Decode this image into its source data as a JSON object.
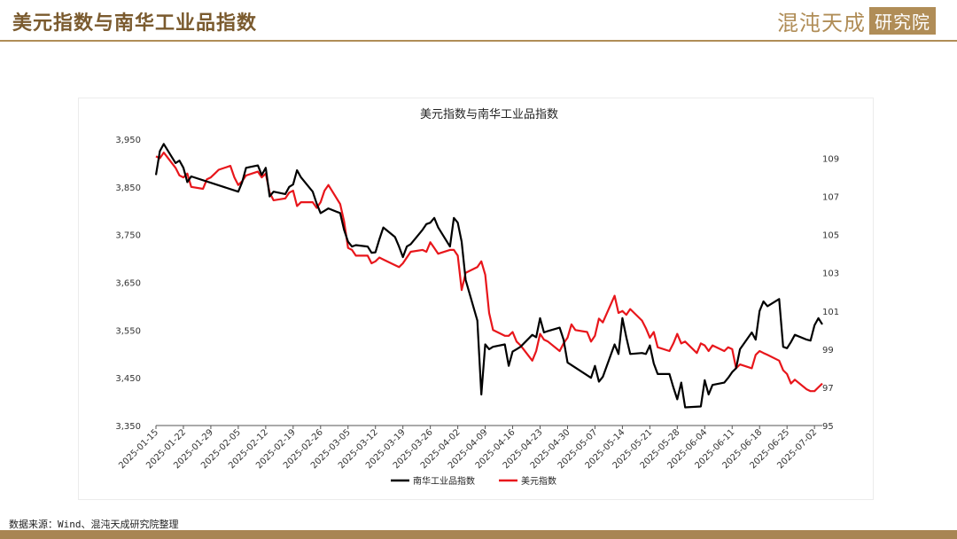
{
  "header": {
    "title": "美元指数与南华工业品指数",
    "brand_name": "混沌天成",
    "brand_box": "研究院"
  },
  "footer": {
    "source": "数据来源：Wind、混沌天成研究院整理"
  },
  "colors": {
    "accent": "#b08d57",
    "bar": "#a88553",
    "series_nanhua": "#000000",
    "series_usd": "#e8161b"
  },
  "chart_data": {
    "type": "line",
    "title": "美元指数与南华工业品指数",
    "xlabel": "",
    "ylabel": "",
    "x_tick_labels": [
      "2025-01-15",
      "2025-01-22",
      "2025-01-29",
      "2025-02-05",
      "2025-02-12",
      "2025-02-19",
      "2025-02-26",
      "2025-03-05",
      "2025-03-12",
      "2025-03-19",
      "2025-03-26",
      "2025-04-02",
      "2025-04-09",
      "2025-04-16",
      "2025-04-23",
      "2025-04-30",
      "2025-05-07",
      "2025-05-14",
      "2025-05-21",
      "2025-05-28",
      "2025-06-04",
      "2025-06-11",
      "2025-06-18",
      "2025-06-25",
      "2025-07-02"
    ],
    "x_range": [
      "2025-01-15",
      "2025-07-04"
    ],
    "y_left": {
      "ticks": [
        3350,
        3450,
        3550,
        3650,
        3750,
        3850,
        3950
      ],
      "tick_labels": [
        "3,350",
        "3,450",
        "3,550",
        "3,650",
        "3,750",
        "3,850",
        "3,950"
      ],
      "range": [
        3350,
        3950
      ]
    },
    "y_right": {
      "ticks": [
        95,
        97,
        99,
        101,
        103,
        105,
        107,
        109
      ],
      "tick_labels": [
        "95",
        "97",
        "99",
        "101",
        "103",
        "105",
        "107",
        "109"
      ],
      "range": [
        95,
        110
      ]
    },
    "legend": {
      "position": "bottom"
    },
    "grid": false,
    "series": [
      {
        "name": "南华工业品指数",
        "axis": "left",
        "color": "#000000",
        "points": [
          [
            "2025-01-15",
            3875
          ],
          [
            "2025-01-16",
            3925
          ],
          [
            "2025-01-17",
            3940
          ],
          [
            "2025-01-20",
            3900
          ],
          [
            "2025-01-21",
            3905
          ],
          [
            "2025-01-22",
            3890
          ],
          [
            "2025-01-23",
            3860
          ],
          [
            "2025-01-24",
            3872
          ],
          [
            "2025-02-05",
            3840
          ],
          [
            "2025-02-06",
            3860
          ],
          [
            "2025-02-07",
            3890
          ],
          [
            "2025-02-10",
            3895
          ],
          [
            "2025-02-11",
            3875
          ],
          [
            "2025-02-12",
            3890
          ],
          [
            "2025-02-13",
            3830
          ],
          [
            "2025-02-14",
            3840
          ],
          [
            "2025-02-17",
            3835
          ],
          [
            "2025-02-18",
            3850
          ],
          [
            "2025-02-19",
            3855
          ],
          [
            "2025-02-20",
            3885
          ],
          [
            "2025-02-21",
            3870
          ],
          [
            "2025-02-24",
            3840
          ],
          [
            "2025-02-25",
            3815
          ],
          [
            "2025-02-26",
            3795
          ],
          [
            "2025-02-27",
            3800
          ],
          [
            "2025-02-28",
            3805
          ],
          [
            "2025-03-03",
            3795
          ],
          [
            "2025-03-04",
            3760
          ],
          [
            "2025-03-05",
            3735
          ],
          [
            "2025-03-06",
            3725
          ],
          [
            "2025-03-07",
            3728
          ],
          [
            "2025-03-10",
            3725
          ],
          [
            "2025-03-11",
            3712
          ],
          [
            "2025-03-12",
            3713
          ],
          [
            "2025-03-13",
            3740
          ],
          [
            "2025-03-14",
            3765
          ],
          [
            "2025-03-17",
            3745
          ],
          [
            "2025-03-18",
            3725
          ],
          [
            "2025-03-19",
            3703
          ],
          [
            "2025-03-20",
            3725
          ],
          [
            "2025-03-21",
            3730
          ],
          [
            "2025-03-24",
            3760
          ],
          [
            "2025-03-25",
            3772
          ],
          [
            "2025-03-26",
            3775
          ],
          [
            "2025-03-27",
            3785
          ],
          [
            "2025-03-28",
            3765
          ],
          [
            "2025-03-31",
            3725
          ],
          [
            "2025-04-01",
            3785
          ],
          [
            "2025-04-02",
            3775
          ],
          [
            "2025-04-03",
            3735
          ],
          [
            "2025-04-04",
            3655
          ],
          [
            "2025-04-07",
            3570
          ],
          [
            "2025-04-08",
            3415
          ],
          [
            "2025-04-09",
            3520
          ],
          [
            "2025-04-10",
            3510
          ],
          [
            "2025-04-11",
            3515
          ],
          [
            "2025-04-14",
            3520
          ],
          [
            "2025-04-15",
            3475
          ],
          [
            "2025-04-16",
            3505
          ],
          [
            "2025-04-17",
            3510
          ],
          [
            "2025-04-18",
            3515
          ],
          [
            "2025-04-21",
            3540
          ],
          [
            "2025-04-22",
            3535
          ],
          [
            "2025-04-23",
            3575
          ],
          [
            "2025-04-24",
            3545
          ],
          [
            "2025-04-25",
            3548
          ],
          [
            "2025-04-28",
            3555
          ],
          [
            "2025-04-29",
            3530
          ],
          [
            "2025-04-30",
            3482
          ],
          [
            "2025-05-06",
            3450
          ],
          [
            "2025-05-07",
            3475
          ],
          [
            "2025-05-08",
            3442
          ],
          [
            "2025-05-09",
            3452
          ],
          [
            "2025-05-12",
            3520
          ],
          [
            "2025-05-13",
            3500
          ],
          [
            "2025-05-14",
            3575
          ],
          [
            "2025-05-15",
            3535
          ],
          [
            "2025-05-16",
            3500
          ],
          [
            "2025-05-19",
            3502
          ],
          [
            "2025-05-20",
            3500
          ],
          [
            "2025-05-21",
            3518
          ],
          [
            "2025-05-22",
            3480
          ],
          [
            "2025-05-23",
            3458
          ],
          [
            "2025-05-26",
            3458
          ],
          [
            "2025-05-27",
            3430
          ],
          [
            "2025-05-28",
            3405
          ],
          [
            "2025-05-29",
            3440
          ],
          [
            "2025-05-30",
            3388
          ],
          [
            "2025-06-03",
            3390
          ],
          [
            "2025-06-04",
            3445
          ],
          [
            "2025-06-05",
            3415
          ],
          [
            "2025-06-06",
            3435
          ],
          [
            "2025-06-09",
            3440
          ],
          [
            "2025-06-10",
            3450
          ],
          [
            "2025-06-11",
            3462
          ],
          [
            "2025-06-12",
            3470
          ],
          [
            "2025-06-13",
            3510
          ],
          [
            "2025-06-16",
            3545
          ],
          [
            "2025-06-17",
            3530
          ],
          [
            "2025-06-18",
            3590
          ],
          [
            "2025-06-19",
            3610
          ],
          [
            "2025-06-20",
            3600
          ],
          [
            "2025-06-23",
            3615
          ],
          [
            "2025-06-24",
            3515
          ],
          [
            "2025-06-25",
            3512
          ],
          [
            "2025-06-26",
            3525
          ],
          [
            "2025-06-27",
            3540
          ],
          [
            "2025-06-30",
            3530
          ],
          [
            "2025-07-01",
            3528
          ],
          [
            "2025-07-02",
            3560
          ],
          [
            "2025-07-03",
            3575
          ],
          [
            "2025-07-04",
            3562
          ]
        ]
      },
      {
        "name": "美元指数",
        "axis": "right",
        "color": "#e8161b",
        "points": [
          [
            "2025-01-15",
            109.1
          ],
          [
            "2025-01-16",
            109.0
          ],
          [
            "2025-01-17",
            109.3
          ],
          [
            "2025-01-20",
            108.5
          ],
          [
            "2025-01-21",
            108.1
          ],
          [
            "2025-01-22",
            108.0
          ],
          [
            "2025-01-23",
            108.2
          ],
          [
            "2025-01-24",
            107.5
          ],
          [
            "2025-01-27",
            107.4
          ],
          [
            "2025-01-28",
            107.9
          ],
          [
            "2025-01-29",
            108.0
          ],
          [
            "2025-01-30",
            108.2
          ],
          [
            "2025-01-31",
            108.4
          ],
          [
            "2025-02-03",
            108.6
          ],
          [
            "2025-02-04",
            108.0
          ],
          [
            "2025-02-05",
            107.6
          ],
          [
            "2025-02-06",
            107.8
          ],
          [
            "2025-02-07",
            108.1
          ],
          [
            "2025-02-10",
            108.3
          ],
          [
            "2025-02-11",
            108.0
          ],
          [
            "2025-02-12",
            108.2
          ],
          [
            "2025-02-13",
            107.2
          ],
          [
            "2025-02-14",
            106.8
          ],
          [
            "2025-02-17",
            106.9
          ],
          [
            "2025-02-18",
            107.2
          ],
          [
            "2025-02-19",
            107.3
          ],
          [
            "2025-02-20",
            106.5
          ],
          [
            "2025-02-21",
            106.7
          ],
          [
            "2025-02-24",
            106.7
          ],
          [
            "2025-02-25",
            106.4
          ],
          [
            "2025-02-26",
            106.7
          ],
          [
            "2025-02-27",
            107.3
          ],
          [
            "2025-02-28",
            107.6
          ],
          [
            "2025-03-03",
            106.6
          ],
          [
            "2025-03-04",
            105.7
          ],
          [
            "2025-03-05",
            104.3
          ],
          [
            "2025-03-06",
            104.2
          ],
          [
            "2025-03-07",
            103.9
          ],
          [
            "2025-03-10",
            103.9
          ],
          [
            "2025-03-11",
            103.5
          ],
          [
            "2025-03-12",
            103.6
          ],
          [
            "2025-03-13",
            103.8
          ],
          [
            "2025-03-14",
            103.7
          ],
          [
            "2025-03-17",
            103.4
          ],
          [
            "2025-03-18",
            103.3
          ],
          [
            "2025-03-19",
            103.5
          ],
          [
            "2025-03-20",
            103.8
          ],
          [
            "2025-03-21",
            104.1
          ],
          [
            "2025-03-24",
            104.2
          ],
          [
            "2025-03-25",
            104.1
          ],
          [
            "2025-03-26",
            104.6
          ],
          [
            "2025-03-27",
            104.3
          ],
          [
            "2025-03-28",
            104.0
          ],
          [
            "2025-03-31",
            104.2
          ],
          [
            "2025-04-01",
            104.2
          ],
          [
            "2025-04-02",
            103.9
          ],
          [
            "2025-04-03",
            102.1
          ],
          [
            "2025-04-04",
            103.0
          ],
          [
            "2025-04-07",
            103.3
          ],
          [
            "2025-04-08",
            103.6
          ],
          [
            "2025-04-09",
            102.9
          ],
          [
            "2025-04-10",
            100.9
          ],
          [
            "2025-04-11",
            100.0
          ],
          [
            "2025-04-14",
            99.7
          ],
          [
            "2025-04-15",
            99.7
          ],
          [
            "2025-04-16",
            99.9
          ],
          [
            "2025-04-17",
            99.4
          ],
          [
            "2025-04-18",
            99.2
          ],
          [
            "2025-04-21",
            98.4
          ],
          [
            "2025-04-22",
            98.9
          ],
          [
            "2025-04-23",
            99.8
          ],
          [
            "2025-04-24",
            99.5
          ],
          [
            "2025-04-25",
            99.4
          ],
          [
            "2025-04-28",
            98.9
          ],
          [
            "2025-04-29",
            99.3
          ],
          [
            "2025-04-30",
            99.6
          ],
          [
            "2025-05-01",
            100.3
          ],
          [
            "2025-05-02",
            100.0
          ],
          [
            "2025-05-05",
            99.9
          ],
          [
            "2025-05-06",
            99.4
          ],
          [
            "2025-05-07",
            99.7
          ],
          [
            "2025-05-08",
            100.6
          ],
          [
            "2025-05-09",
            100.4
          ],
          [
            "2025-05-12",
            101.8
          ],
          [
            "2025-05-13",
            100.9
          ],
          [
            "2025-05-14",
            101.0
          ],
          [
            "2025-05-15",
            100.8
          ],
          [
            "2025-05-16",
            101.1
          ],
          [
            "2025-05-19",
            100.5
          ],
          [
            "2025-05-20",
            100.1
          ],
          [
            "2025-05-21",
            99.6
          ],
          [
            "2025-05-22",
            99.9
          ],
          [
            "2025-05-23",
            99.1
          ],
          [
            "2025-05-26",
            98.9
          ],
          [
            "2025-05-27",
            99.3
          ],
          [
            "2025-05-28",
            99.8
          ],
          [
            "2025-05-29",
            99.3
          ],
          [
            "2025-05-30",
            99.4
          ],
          [
            "2025-06-02",
            98.8
          ],
          [
            "2025-06-03",
            99.3
          ],
          [
            "2025-06-04",
            99.2
          ],
          [
            "2025-06-05",
            98.9
          ],
          [
            "2025-06-06",
            99.2
          ],
          [
            "2025-06-09",
            98.9
          ],
          [
            "2025-06-10",
            99.1
          ],
          [
            "2025-06-11",
            99.0
          ],
          [
            "2025-06-12",
            98.0
          ],
          [
            "2025-06-13",
            98.2
          ],
          [
            "2025-06-16",
            98.0
          ],
          [
            "2025-06-17",
            98.7
          ],
          [
            "2025-06-18",
            98.9
          ],
          [
            "2025-06-19",
            98.8
          ],
          [
            "2025-06-20",
            98.7
          ],
          [
            "2025-06-23",
            98.4
          ],
          [
            "2025-06-24",
            97.9
          ],
          [
            "2025-06-25",
            97.7
          ],
          [
            "2025-06-26",
            97.2
          ],
          [
            "2025-06-27",
            97.4
          ],
          [
            "2025-06-30",
            96.9
          ],
          [
            "2025-07-01",
            96.8
          ],
          [
            "2025-07-02",
            96.8
          ],
          [
            "2025-07-03",
            97.0
          ],
          [
            "2025-07-04",
            97.2
          ]
        ]
      }
    ]
  }
}
